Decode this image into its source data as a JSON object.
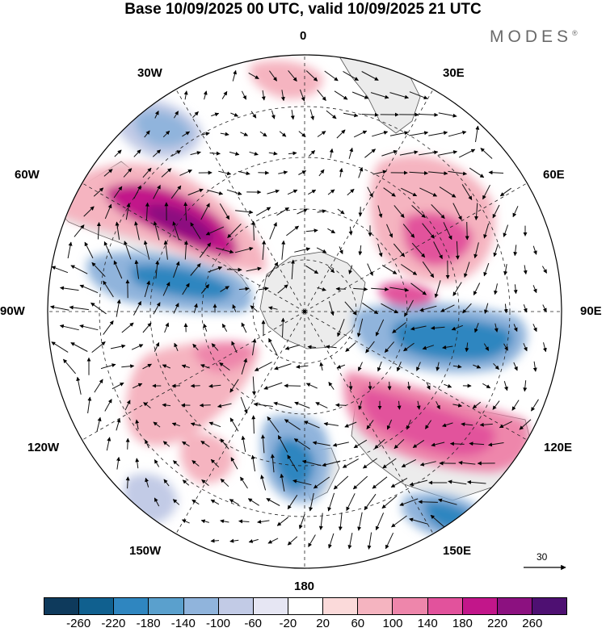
{
  "title": "Base 10/09/2025 00 UTC, valid 10/09/2025 21 UTC",
  "brand": "MODES",
  "brand_mark": "®",
  "lon_labels": {
    "deg0": "0",
    "deg30e": "30E",
    "deg60e": "60E",
    "deg90e": "90E",
    "deg120e": "120E",
    "deg150e": "150E",
    "deg180": "180",
    "deg150w": "150W",
    "deg120w": "120W",
    "deg90w": "90W",
    "deg60w": "60W",
    "deg30w": "30W"
  },
  "vector_reference": {
    "value": "30"
  },
  "colorbar": {
    "colors": [
      "#0e3a5c",
      "#10608f",
      "#2f86c0",
      "#5aa0cd",
      "#90b4dc",
      "#c2cbe6",
      "#e6e6f3",
      "#ffffff",
      "#fbdada",
      "#f5b4c0",
      "#ee86ab",
      "#e2529c",
      "#c2168a",
      "#8c1180",
      "#4e1072"
    ],
    "ticks": [
      "-260",
      "-220",
      "-180",
      "-140",
      "-100",
      "-60",
      "-20",
      "20",
      "60",
      "100",
      "140",
      "180",
      "220",
      "260"
    ]
  },
  "colors": {
    "land": "#ececec",
    "coast": "#555555",
    "grid": "#222222"
  }
}
